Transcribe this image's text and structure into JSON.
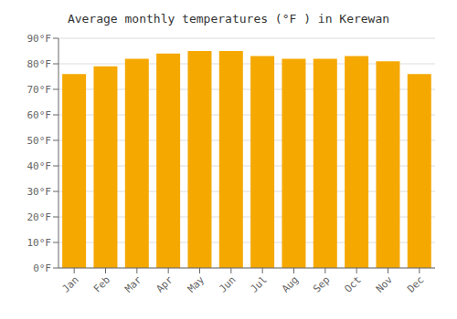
{
  "chart_data": {
    "type": "bar",
    "title": "Average monthly temperatures (°F ) in Kerewan",
    "categories": [
      "Jan",
      "Feb",
      "Mar",
      "Apr",
      "May",
      "Jun",
      "Jul",
      "Aug",
      "Sep",
      "Oct",
      "Nov",
      "Dec"
    ],
    "values": [
      76,
      79,
      82,
      84,
      85,
      85,
      83,
      82,
      82,
      83,
      81,
      76
    ],
    "color": "#F5A800",
    "ylim": [
      0,
      90
    ],
    "yticks": [
      {
        "value": 0,
        "label": "0°F"
      },
      {
        "value": 10,
        "label": "10°F"
      },
      {
        "value": 20,
        "label": "20°F"
      },
      {
        "value": 30,
        "label": "30°F"
      },
      {
        "value": 40,
        "label": "40°F"
      },
      {
        "value": 50,
        "label": "50°F"
      },
      {
        "value": 60,
        "label": "60°F"
      },
      {
        "value": 70,
        "label": "70°F"
      },
      {
        "value": 80,
        "label": "80°F"
      },
      {
        "value": 90,
        "label": "90°F"
      }
    ],
    "grid": true
  }
}
